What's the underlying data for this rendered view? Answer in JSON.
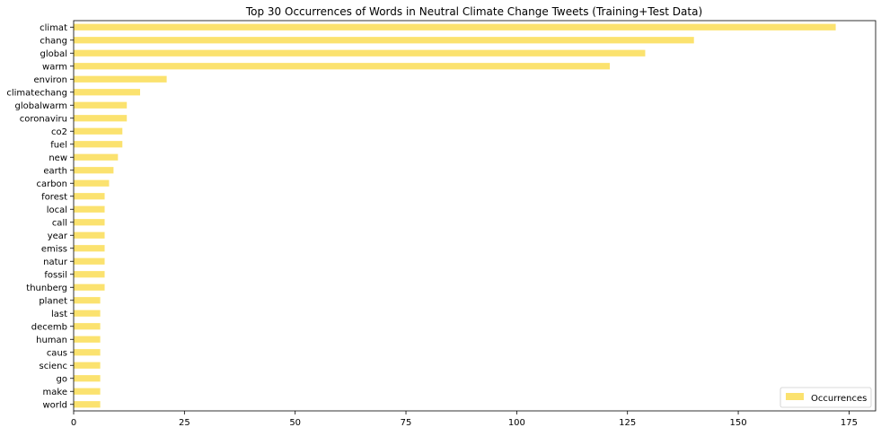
{
  "chart_data": {
    "type": "bar",
    "orientation": "horizontal",
    "title": "Top 30 Occurrences of Words in Neutral Climate Change Tweets (Training+Test Data)",
    "xlabel": "",
    "ylabel": "",
    "xlim": [
      0,
      181
    ],
    "xticks": [
      0,
      25,
      50,
      75,
      100,
      125,
      150,
      175
    ],
    "grid": false,
    "legend_position": "lower right",
    "bar_color": "#fbe26f",
    "categories": [
      "climat",
      "chang",
      "global",
      "warm",
      "environ",
      "climatechang",
      "globalwarm",
      "coronaviru",
      "co2",
      "fuel",
      "new",
      "earth",
      "carbon",
      "forest",
      "local",
      "call",
      "year",
      "emiss",
      "natur",
      "fossil",
      "thunberg",
      "planet",
      "last",
      "decemb",
      "human",
      "caus",
      "scienc",
      "go",
      "make",
      "world"
    ],
    "series": [
      {
        "name": "Occurrences",
        "values": [
          172,
          140,
          129,
          121,
          21,
          15,
          12,
          12,
          11,
          11,
          10,
          9,
          8,
          7,
          7,
          7,
          7,
          7,
          7,
          7,
          7,
          6,
          6,
          6,
          6,
          6,
          6,
          6,
          6,
          6
        ]
      }
    ]
  }
}
